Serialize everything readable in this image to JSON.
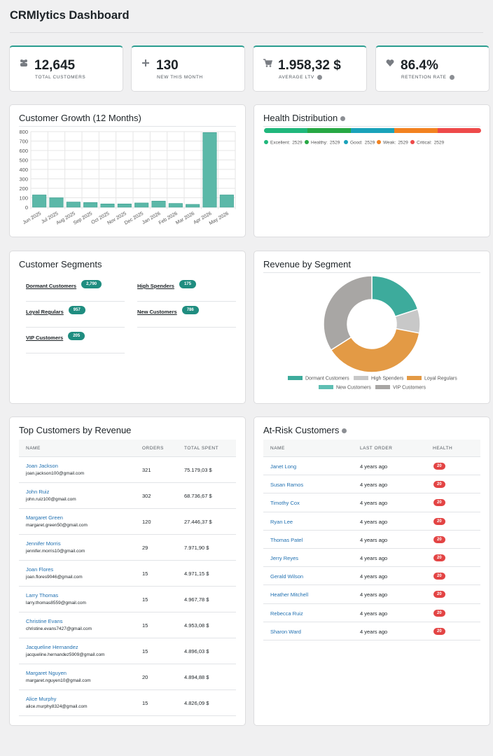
{
  "header": {
    "title": "CRMlytics Dashboard"
  },
  "kpis": [
    {
      "value": "12,645",
      "label": "TOTAL CUSTOMERS"
    },
    {
      "value": "130",
      "label": "NEW THIS MONTH"
    },
    {
      "value": "1.958,32 $",
      "label": "AVERAGE LTV"
    },
    {
      "value": "86.4%",
      "label": "RETENTION RATE"
    }
  ],
  "chart_data": [
    {
      "type": "bar",
      "title": "Customer Growth (12 Months)",
      "categories": [
        "Jun 2025",
        "Jul 2025",
        "Aug 2025",
        "Sep 2025",
        "Oct 2025",
        "Nov 2025",
        "Dec 2025",
        "Jan 2026",
        "Feb 2026",
        "Mar 2026",
        "Apr 2026",
        "May 2026"
      ],
      "values": [
        130,
        100,
        55,
        50,
        35,
        35,
        45,
        65,
        40,
        30,
        790,
        130
      ],
      "color": "#5bb8a8",
      "ylim": [
        0,
        800
      ],
      "yticks": [
        0,
        100,
        200,
        300,
        400,
        500,
        600,
        700,
        800
      ],
      "grid": true
    },
    {
      "type": "stacked-bar",
      "title": "Health Distribution",
      "series": [
        {
          "name": "Excellent",
          "color": "#20b77c",
          "values": [
            2529
          ]
        },
        {
          "name": "Healthy",
          "color": "#27a844",
          "values": [
            2529
          ]
        },
        {
          "name": "Good",
          "color": "#1aa2ba",
          "values": [
            2529
          ]
        },
        {
          "name": "Weak",
          "color": "#f28220",
          "values": [
            2529
          ]
        },
        {
          "name": "Critical",
          "color": "#ee4a4a",
          "values": [
            2529
          ]
        }
      ]
    },
    {
      "type": "pie",
      "title": "Revenue by Segment",
      "categories": [
        "Dormant Customers",
        "High Spenders",
        "Loyal Regulars",
        "New Customers",
        "VIP Customers"
      ],
      "values": [
        20,
        8,
        38,
        0,
        34
      ],
      "colors": [
        "#3dab9c",
        "#c8c8c8",
        "#e39a45",
        "#5fbfb3",
        "#a8a6a4"
      ]
    }
  ],
  "segments": {
    "title": "Customer Segments",
    "items": [
      {
        "name": "Dormant Customers",
        "count": "2,790"
      },
      {
        "name": "High Spenders",
        "count": "175"
      },
      {
        "name": "Loyal Regulars",
        "count": "957"
      },
      {
        "name": "New Customers",
        "count": "786"
      },
      {
        "name": "VIP Customers",
        "count": "205"
      }
    ]
  },
  "top_customers": {
    "title": "Top Customers by Revenue",
    "columns": [
      "NAME",
      "ORDERS",
      "TOTAL SPENT"
    ],
    "rows": [
      {
        "name": "Joan Jackson",
        "email": "joan.jackson100@gmail.com",
        "orders": "321",
        "total": "75.179,03 $"
      },
      {
        "name": "John Ruiz",
        "email": "john.ruiz100@gmail.com",
        "orders": "302",
        "total": "68.736,67 $"
      },
      {
        "name": "Margaret Green",
        "email": "margaret.green50@gmail.com",
        "orders": "120",
        "total": "27.446,37 $"
      },
      {
        "name": "Jennifer Morris",
        "email": "jennifer.morris10@gmail.com",
        "orders": "29",
        "total": "7.971,90 $"
      },
      {
        "name": "Joan Flores",
        "email": "joan.flores9046@gmail.com",
        "orders": "15",
        "total": "4.971,15 $"
      },
      {
        "name": "Larry Thomas",
        "email": "larry.thomas8559@gmail.com",
        "orders": "15",
        "total": "4.967,78 $"
      },
      {
        "name": "Christine Evans",
        "email": "christine.evans7427@gmail.com",
        "orders": "15",
        "total": "4.953,08 $"
      },
      {
        "name": "Jacqueline Hernandez",
        "email": "jacqueline.hernandez5909@gmail.com",
        "orders": "15",
        "total": "4.896,03 $"
      },
      {
        "name": "Margaret Nguyen",
        "email": "margaret.nguyen10@gmail.com",
        "orders": "20",
        "total": "4.894,88 $"
      },
      {
        "name": "Alice Murphy",
        "email": "alice.murphy8324@gmail.com",
        "orders": "15",
        "total": "4.826,09 $"
      }
    ]
  },
  "at_risk": {
    "title": "At-Risk Customers",
    "columns": [
      "NAME",
      "LAST ORDER",
      "HEALTH"
    ],
    "rows": [
      {
        "name": "Janet Long",
        "last_order": "4 years ago",
        "health": "20"
      },
      {
        "name": "Susan Ramos",
        "last_order": "4 years ago",
        "health": "20"
      },
      {
        "name": "Timothy Cox",
        "last_order": "4 years ago",
        "health": "20"
      },
      {
        "name": "Ryan Lee",
        "last_order": "4 years ago",
        "health": "20"
      },
      {
        "name": "Thomas Patel",
        "last_order": "4 years ago",
        "health": "20"
      },
      {
        "name": "Jerry Reyes",
        "last_order": "4 years ago",
        "health": "20"
      },
      {
        "name": "Gerald Wilson",
        "last_order": "4 years ago",
        "health": "20"
      },
      {
        "name": "Heather Mitchell",
        "last_order": "4 years ago",
        "health": "20"
      },
      {
        "name": "Rebecca Ruiz",
        "last_order": "4 years ago",
        "health": "20"
      },
      {
        "name": "Sharon Ward",
        "last_order": "4 years ago",
        "health": "20"
      }
    ]
  }
}
